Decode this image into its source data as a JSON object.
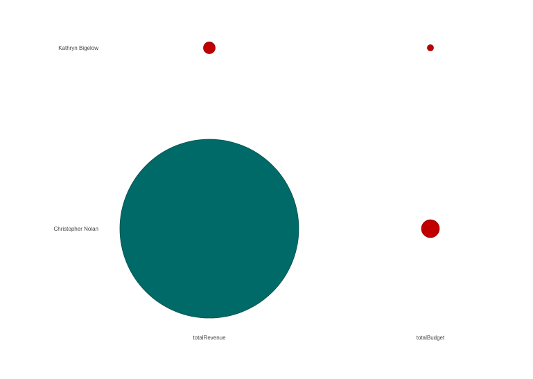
{
  "chart_data": {
    "type": "scatter",
    "title": "",
    "rows": [
      "Kathryn Bigelow",
      "Christopher Nolan"
    ],
    "columns": [
      "totalRevenue",
      "totalBudget"
    ],
    "cells": [
      {
        "row": "Kathryn Bigelow",
        "column": "totalRevenue",
        "value": 0.43
      },
      {
        "row": "Kathryn Bigelow",
        "column": "totalBudget",
        "value": 0.12
      },
      {
        "row": "Christopher Nolan",
        "column": "totalRevenue",
        "value": 100.0
      },
      {
        "row": "Christopher Nolan",
        "column": "totalBudget",
        "value": 1.0
      }
    ],
    "size_encoding": "area proportional to value",
    "colors": {
      "highlight": "#006a68",
      "highlight_stroke": "#004f4d",
      "default": "#c00000",
      "default_stroke": "#8a0000"
    },
    "highlighted_cell": {
      "row": "Christopher Nolan",
      "column": "totalRevenue"
    }
  }
}
